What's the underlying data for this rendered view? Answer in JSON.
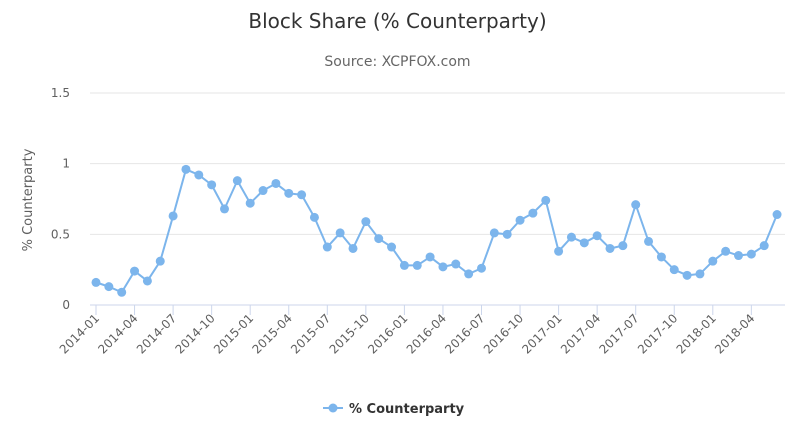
{
  "chart_data": {
    "type": "line",
    "title": "Block Share (% Counterparty)",
    "subtitle": "Source: XCPFOX.com",
    "ylabel": "% Counterparty",
    "xlabel": "",
    "ylim": [
      0,
      1.5
    ],
    "yticks": [
      "0",
      "0.5",
      "1",
      "1.5"
    ],
    "x_tick_labels": [
      "2014-01",
      "2014-04",
      "2014-07",
      "2014-10",
      "2015-01",
      "2015-04",
      "2015-07",
      "2015-10",
      "2016-01",
      "2016-04",
      "2016-07",
      "2016-10",
      "2017-01",
      "2017-04",
      "2017-07",
      "2017-10",
      "2018-01",
      "2018-04"
    ],
    "grid": true,
    "legend_position": "bottom-center",
    "color": "#7cb5ec",
    "x": [
      "2014-01",
      "2014-02",
      "2014-03",
      "2014-04",
      "2014-05",
      "2014-06",
      "2014-07",
      "2014-08",
      "2014-09",
      "2014-10",
      "2014-11",
      "2014-12",
      "2015-01",
      "2015-02",
      "2015-03",
      "2015-04",
      "2015-05",
      "2015-06",
      "2015-07",
      "2015-08",
      "2015-09",
      "2015-10",
      "2015-11",
      "2015-12",
      "2016-01",
      "2016-02",
      "2016-03",
      "2016-04",
      "2016-05",
      "2016-06",
      "2016-07",
      "2016-08",
      "2016-09",
      "2016-10",
      "2016-11",
      "2016-12",
      "2017-01",
      "2017-02",
      "2017-03",
      "2017-04",
      "2017-05",
      "2017-06",
      "2017-07",
      "2017-08",
      "2017-09",
      "2017-10",
      "2017-11",
      "2017-12",
      "2018-01",
      "2018-02",
      "2018-03",
      "2018-04",
      "2018-05",
      "2018-06"
    ],
    "series": [
      {
        "name": "% Counterparty",
        "values": [
          0.16,
          0.13,
          0.09,
          0.24,
          0.17,
          0.31,
          0.63,
          0.96,
          0.92,
          0.85,
          0.68,
          0.88,
          0.72,
          0.81,
          0.86,
          0.79,
          0.78,
          0.62,
          0.41,
          0.51,
          0.4,
          0.59,
          0.47,
          0.41,
          0.28,
          0.28,
          0.34,
          0.27,
          0.29,
          0.22,
          0.26,
          0.51,
          0.5,
          0.6,
          0.65,
          0.74,
          0.38,
          0.48,
          0.44,
          0.49,
          0.4,
          0.42,
          0.71,
          0.45,
          0.34,
          0.25,
          0.21,
          0.22,
          0.31,
          0.38,
          0.35,
          0.36,
          0.42,
          0.64
        ]
      }
    ]
  }
}
